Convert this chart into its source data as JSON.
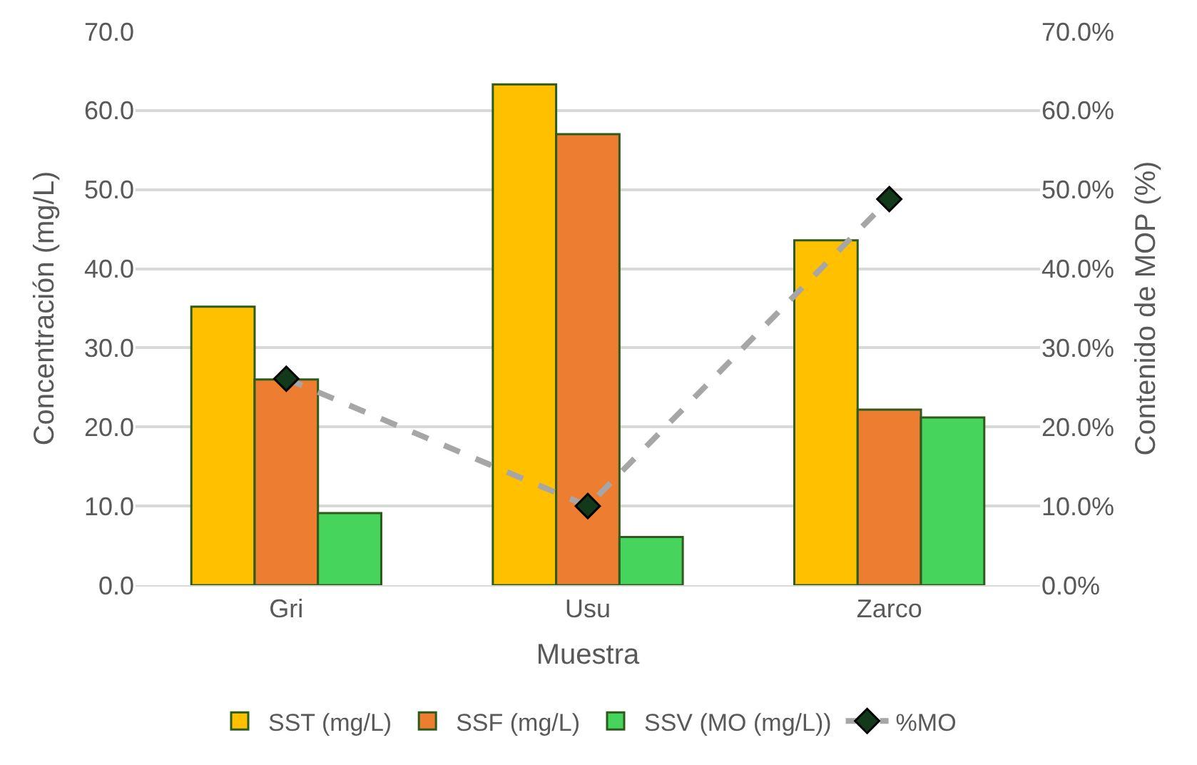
{
  "chart_data": {
    "type": "bar",
    "xlabel": "Muestra",
    "ylabel": "Concentración (mg/L)",
    "y2label": "Contenido de MOP (%)",
    "categories": [
      "Gri",
      "Usu",
      "Zarco"
    ],
    "series": [
      {
        "name": "SST (mg/L)",
        "color": "#ffc000",
        "values": [
          35.2,
          63.3,
          43.6
        ]
      },
      {
        "name": "SSF (mg/L)",
        "color": "#ed7d31",
        "values": [
          26.0,
          57.0,
          22.2
        ]
      },
      {
        "name": "SSV (MO (mg/L))",
        "color": "#47d45c",
        "values": [
          9.1,
          6.1,
          21.2
        ]
      },
      {
        "name": "%MO",
        "type": "line",
        "axis": "y2",
        "color": "#a6a6a6",
        "marker": "diamond",
        "line_style": "dashed",
        "values": [
          26.1,
          10.0,
          48.8
        ]
      }
    ],
    "ylim": [
      0,
      70
    ],
    "yticks": [
      {
        "value": 0,
        "label": "0.0"
      },
      {
        "value": 10,
        "label": "10.0"
      },
      {
        "value": 20,
        "label": "20.0"
      },
      {
        "value": 30,
        "label": "30.0"
      },
      {
        "value": 40,
        "label": "40.0"
      },
      {
        "value": 50,
        "label": "50.0"
      },
      {
        "value": 60,
        "label": "60.0"
      },
      {
        "value": 70,
        "label": "70.0"
      }
    ],
    "y2lim": [
      0,
      70
    ],
    "y2ticks": [
      {
        "value": 0,
        "label": "0.0%"
      },
      {
        "value": 10,
        "label": "10.0%"
      },
      {
        "value": 20,
        "label": "20.0%"
      },
      {
        "value": 30,
        "label": "30.0%"
      },
      {
        "value": 40,
        "label": "40.0%"
      },
      {
        "value": 50,
        "label": "50.0%"
      },
      {
        "value": 60,
        "label": "60.0%"
      },
      {
        "value": 70,
        "label": "70.0%"
      }
    ],
    "grid": "y",
    "legend": "bottom"
  }
}
